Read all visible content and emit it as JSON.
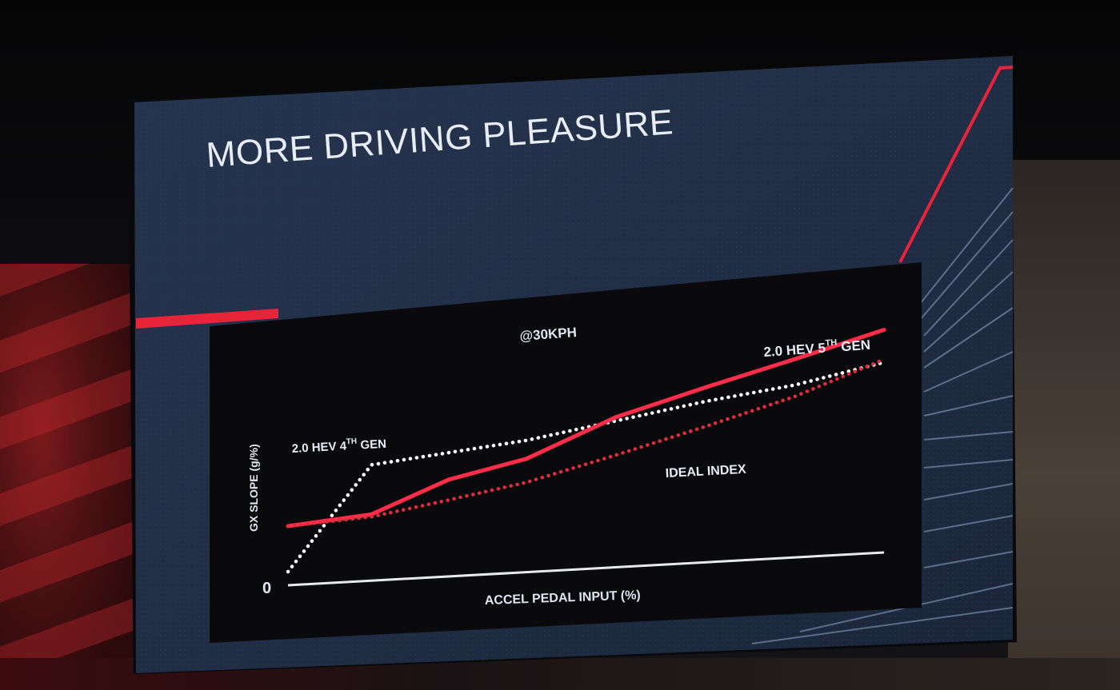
{
  "slide": {
    "title": "MORE DRIVING PLEASURE",
    "accent_color": "#e8243a",
    "background_color": "#22314a"
  },
  "chart_data": {
    "type": "line",
    "subtitle": "@30KPH",
    "xlabel": "ACCEL PEDAL INPUT (%)",
    "ylabel": "GX SLOPE (g/%)",
    "y_origin_label": "0",
    "xlim": [
      0,
      100
    ],
    "ylim": [
      0,
      100
    ],
    "grid": false,
    "series": [
      {
        "name": "2.0 HEV 4TH GEN",
        "style": "dotted",
        "color": "#ffffff",
        "x": [
          0,
          14,
          40,
          70,
          85,
          100
        ],
        "y": [
          0,
          42,
          47,
          56,
          59,
          64
        ]
      },
      {
        "name": "2.0 HEV 5TH GEN",
        "style": "solid",
        "color": "#ff2d4a",
        "x": [
          0,
          14,
          27,
          40,
          55,
          70,
          85,
          100
        ],
        "y": [
          19,
          22,
          34,
          40,
          53,
          61,
          68,
          75
        ]
      },
      {
        "name": "IDEAL INDEX",
        "style": "dotted",
        "color": "#e22b3c",
        "x": [
          0,
          14,
          27,
          40,
          55,
          70,
          85,
          100
        ],
        "y": [
          19,
          21,
          26,
          31,
          39,
          47,
          55,
          65
        ]
      }
    ]
  },
  "labels": {
    "series_4th_prefix": "2.0 HEV 4",
    "series_4th_sup": "TH",
    "series_4th_suffix": " GEN",
    "series_5th_prefix": "2.0 HEV 5",
    "series_5th_sup": "TH",
    "series_5th_suffix": " GEN",
    "ideal": "IDEAL INDEX"
  }
}
